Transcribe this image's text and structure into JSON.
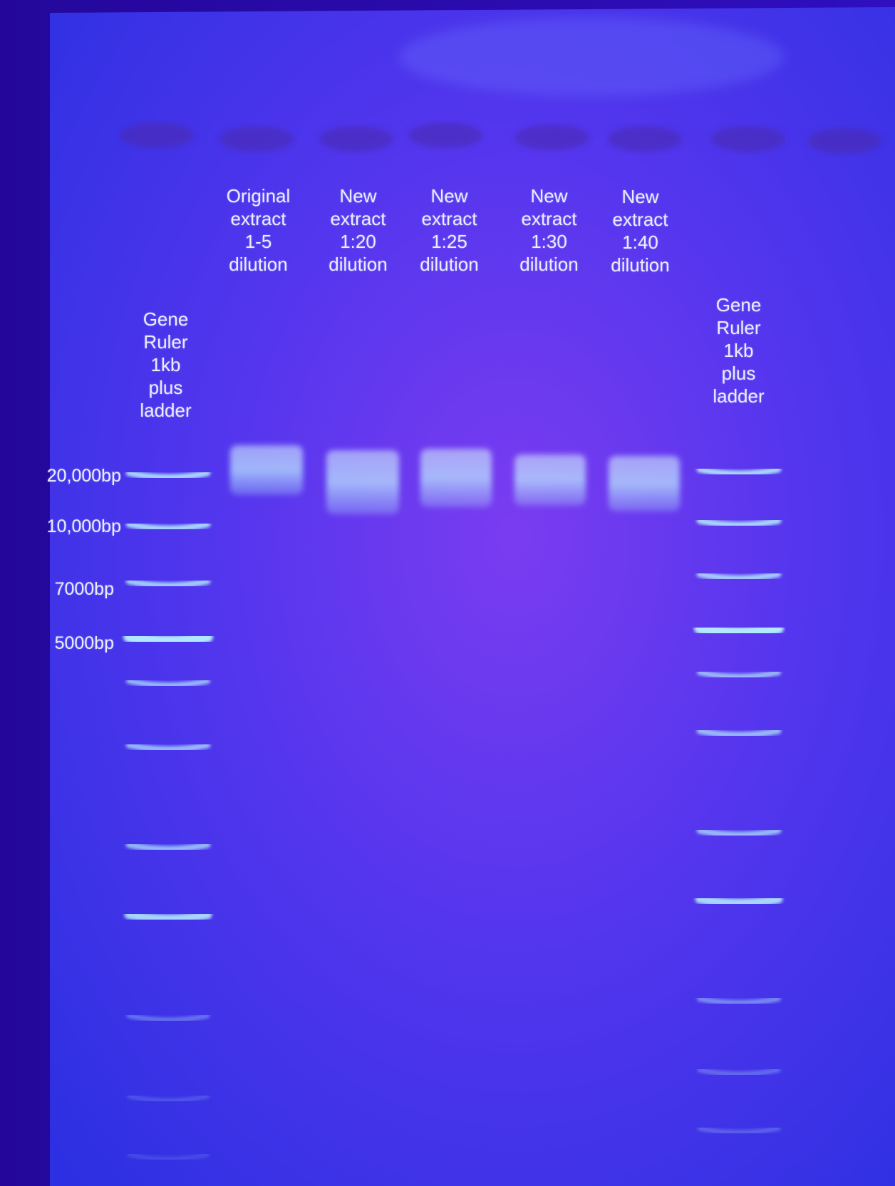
{
  "photo": {
    "subject": "agarose-gel-under-uv",
    "colors": {
      "gel_center": "#7b3cf0",
      "gel_edge": "#2d28e0",
      "background": "#2a0aa8",
      "band": "#b8f2ff",
      "label_text": "#e8ecff"
    }
  },
  "lanes": [
    {
      "label": "Gene\nRuler\n1kb\nplus\nladder",
      "kind": "ladder"
    },
    {
      "label": "Original\nextract\n1-5\ndilution",
      "kind": "sample"
    },
    {
      "label": "New\nextract\n1:20\ndilution",
      "kind": "sample"
    },
    {
      "label": "New\nextract\n1:25\ndilution",
      "kind": "sample"
    },
    {
      "label": "New\nextract\n1:30\ndilution",
      "kind": "sample"
    },
    {
      "label": "New\nextract\n1:40\ndilution",
      "kind": "sample"
    },
    {
      "label": "Gene\nRuler\n1kb\nplus\nladder",
      "kind": "ladder"
    }
  ],
  "size_markers": [
    {
      "label": "20,000bp"
    },
    {
      "label": "10,000bp"
    },
    {
      "label": "7000bp"
    },
    {
      "label": "5000bp"
    }
  ]
}
